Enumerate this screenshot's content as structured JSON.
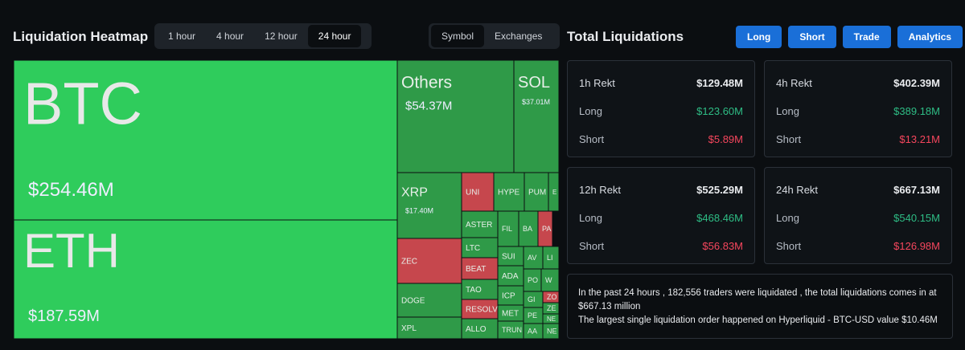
{
  "header": {
    "title": "Liquidation Heatmap",
    "timeframes": [
      "1 hour",
      "4 hour",
      "12 hour",
      "24 hour"
    ],
    "views": [
      "Symbol",
      "Exchanges"
    ]
  },
  "panel": {
    "title": "Total Liquidations",
    "buttons": [
      "Long",
      "Short",
      "Trade",
      "Analytics"
    ]
  },
  "heatmap": {
    "tiles": [
      {
        "label": "BTC",
        "value": "$254.46M",
        "color": "#2fcc5c"
      },
      {
        "label": "ETH",
        "value": "$187.59M",
        "color": "#2fcc5c"
      },
      {
        "label": "Others",
        "value": "$54.37M",
        "color": "#2f9a48"
      },
      {
        "label": "SOL",
        "value": "$37.01M",
        "color": "#2f9a48"
      },
      {
        "label": "XRP",
        "value": "$17.40M",
        "color": "#2f9a48"
      },
      {
        "label": "ZEC",
        "color": "#c6474d"
      },
      {
        "label": "DOGE",
        "color": "#2f9a48"
      },
      {
        "label": "XPL",
        "color": "#2f9a48"
      },
      {
        "label": "UNI",
        "color": "#c6474d"
      },
      {
        "label": "HYPE",
        "color": "#2f9a48"
      },
      {
        "label": "PUM",
        "color": "#2f9a48"
      },
      {
        "label": "E",
        "color": "#2f9a48"
      },
      {
        "label": "ASTER",
        "color": "#2f9a48"
      },
      {
        "label": "FIL",
        "color": "#2f9a48"
      },
      {
        "label": "BA",
        "color": "#2f9a48"
      },
      {
        "label": "PA",
        "color": "#c6474d"
      },
      {
        "label": "LTC",
        "color": "#2f9a48"
      },
      {
        "label": "BEAT",
        "color": "#c6474d"
      },
      {
        "label": "SUI",
        "color": "#2f9a48"
      },
      {
        "label": "AV",
        "color": "#2f9a48"
      },
      {
        "label": "LI",
        "color": "#2f9a48"
      },
      {
        "label": "TAO",
        "color": "#2f9a48"
      },
      {
        "label": "ADA",
        "color": "#2f9a48"
      },
      {
        "label": "PO",
        "color": "#2f9a48"
      },
      {
        "label": "W",
        "color": "#2f9a48"
      },
      {
        "label": "RESOLV",
        "color": "#c6474d"
      },
      {
        "label": "ICP",
        "color": "#2f9a48"
      },
      {
        "label": "GI",
        "color": "#2f9a48"
      },
      {
        "label": "ZO",
        "color": "#c6474d"
      },
      {
        "label": "MET",
        "color": "#2f9a48"
      },
      {
        "label": "ZE",
        "color": "#2f9a48"
      },
      {
        "label": "PE",
        "color": "#2f9a48"
      },
      {
        "label": "NE",
        "color": "#2f9a48"
      },
      {
        "label": "ALLO",
        "color": "#2f9a48"
      },
      {
        "label": "TRUN",
        "color": "#2f9a48"
      },
      {
        "label": "AA",
        "color": "#2f9a48"
      },
      {
        "label": "NE",
        "color": "#2f9a48"
      }
    ]
  },
  "cards": [
    {
      "title": "1h Rekt",
      "total": "$129.48M",
      "long_label": "Long",
      "long": "$123.60M",
      "short_label": "Short",
      "short": "$5.89M"
    },
    {
      "title": "4h Rekt",
      "total": "$402.39M",
      "long_label": "Long",
      "long": "$389.18M",
      "short_label": "Short",
      "short": "$13.21M"
    },
    {
      "title": "12h Rekt",
      "total": "$525.29M",
      "long_label": "Long",
      "long": "$468.46M",
      "short_label": "Short",
      "short": "$56.83M"
    },
    {
      "title": "24h Rekt",
      "total": "$667.13M",
      "long_label": "Long",
      "long": "$540.15M",
      "short_label": "Short",
      "short": "$126.98M"
    }
  ],
  "summary": {
    "lines": [
      "In the past 24 hours , 182,556 traders were liquidated , the total liquidations comes in at $667.13 million",
      "The largest single liquidation order happened on Hyperliquid - BTC-USD value $10.46M"
    ]
  }
}
